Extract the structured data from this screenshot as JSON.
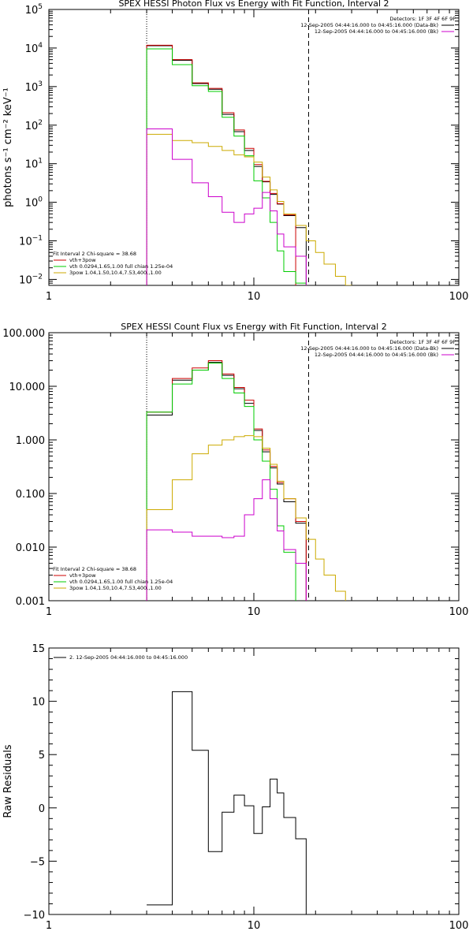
{
  "chart_data": [
    {
      "type": "line",
      "title": "SPEX HESSI Photon Flux vs Energy with Fit Function, Interval 2",
      "ylabel": "photons s⁻¹ cm⁻² keV⁻¹",
      "xlabel": "",
      "xscale": "log",
      "yscale": "log",
      "xlim": [
        1,
        100
      ],
      "ylim": [
        0.007,
        100000
      ],
      "x_tick_labels": [
        "1",
        "10",
        "100"
      ],
      "y_tick_labels": [
        {
          "base": "10",
          "exp": "−2",
          "value": 0.01
        },
        {
          "base": "10",
          "exp": "−1",
          "value": 0.1
        },
        {
          "base": "10",
          "exp": "0",
          "value": 1
        },
        {
          "base": "10",
          "exp": "1",
          "value": 10
        },
        {
          "base": "10",
          "exp": "2",
          "value": 100
        },
        {
          "base": "10",
          "exp": "3",
          "value": 1000
        },
        {
          "base": "10",
          "exp": "4",
          "value": 10000
        },
        {
          "base": "10",
          "exp": "5",
          "value": 100000
        }
      ],
      "vlines": [
        {
          "x": 3,
          "style": "dotted"
        },
        {
          "x": 18.5,
          "style": "dashed"
        }
      ],
      "legend_right": {
        "placement": "top-right",
        "entries": [
          {
            "text": "Detectors: 1F 3F 4F 6F 9F",
            "color": ""
          },
          {
            "text": "12-Sep-2005 04:44:16.000 to 04:45:16.000 (Data-Bk)",
            "color": "#000000"
          },
          {
            "text": "12-Sep-2005 04:44:16.000 to 04:45:16.000 (Bk)",
            "color": "#cc00cc"
          }
        ]
      },
      "legend_left": {
        "placement": "bottom-left",
        "header": "Fit Interval  2    Chi-square = 38.68",
        "entries": [
          {
            "text": "vth+3pow",
            "color": "#cc0000"
          },
          {
            "text": "vth 0.0294,1.65,1.00  full chian 1.25e-04",
            "color": "#00cc00"
          },
          {
            "text": "3pow 1.04,1.50,10.4,7.53,400.,1.00",
            "color": "#ccaa00"
          }
        ]
      },
      "edges": [
        3,
        4,
        5,
        6,
        7,
        8,
        9,
        10,
        11,
        12,
        13,
        14,
        16,
        18,
        20,
        22,
        25,
        28,
        30
      ],
      "series": [
        {
          "color": "#000000",
          "values": [
            11500,
            4800,
            1200,
            850,
            190,
            68,
            22,
            8.5,
            3.4,
            1.6,
            0.9,
            0.45,
            0.22,
            null,
            null,
            null,
            null,
            null
          ]
        },
        {
          "color": "#cc0000",
          "values": [
            11800,
            5000,
            1250,
            900,
            210,
            75,
            25,
            9.5,
            3.5,
            1.7,
            0.92,
            0.47,
            null,
            null,
            null,
            null,
            null,
            null
          ]
        },
        {
          "color": "#00cc00",
          "values": [
            9500,
            3700,
            1050,
            750,
            160,
            52,
            16,
            3.6,
            1.3,
            0.3,
            0.055,
            0.016,
            0.008,
            null,
            null,
            null,
            null,
            null
          ]
        },
        {
          "color": "#ccaa00",
          "values": [
            58,
            40,
            35,
            28,
            22,
            17,
            15,
            11,
            4.5,
            2.1,
            1.05,
            0.5,
            0.25,
            0.1,
            0.05,
            0.025,
            0.012,
            0.006
          ]
        },
        {
          "color": "#cc00cc",
          "values": [
            80,
            13,
            3.2,
            1.4,
            0.55,
            0.3,
            0.5,
            0.7,
            1.8,
            0.6,
            0.15,
            0.07,
            0.04,
            null,
            null,
            null,
            null,
            null
          ]
        }
      ]
    },
    {
      "type": "line",
      "title": "SPEX HESSI Count Flux vs Energy with Fit Function, Interval 2",
      "ylabel": "",
      "xlabel": "",
      "xscale": "log",
      "yscale": "log",
      "xlim": [
        1,
        100
      ],
      "ylim": [
        0.001,
        100
      ],
      "x_tick_labels": [
        "1",
        "10",
        "100"
      ],
      "y_tick_labels": [
        {
          "text": "0.001",
          "value": 0.001
        },
        {
          "text": "0.010",
          "value": 0.01
        },
        {
          "text": "0.100",
          "value": 0.1
        },
        {
          "text": "1.000",
          "value": 1
        },
        {
          "text": "10.000",
          "value": 10
        },
        {
          "text": "100.000",
          "value": 100
        }
      ],
      "vlines": [
        {
          "x": 3,
          "style": "dotted"
        },
        {
          "x": 18.5,
          "style": "dashed"
        }
      ],
      "legend_right": {
        "placement": "top-right",
        "entries": [
          {
            "text": "Detectors: 1F 3F 4F 6F 9F",
            "color": ""
          },
          {
            "text": "12-Sep-2005 04:44:16.000 to 04:45:16.000 (Data-Bk)",
            "color": "#000000"
          },
          {
            "text": "12-Sep-2005 04:44:16.000 to 04:45:16.000 (Bk)",
            "color": "#cc00cc"
          }
        ]
      },
      "legend_left": {
        "placement": "bottom-left",
        "header": "Fit Interval  2    Chi-square = 38.68",
        "entries": [
          {
            "text": "vth+3pow",
            "color": "#cc0000"
          },
          {
            "text": "vth 0.0294,1.65,1.00  full chian 1.25e-04",
            "color": "#00cc00"
          },
          {
            "text": "3pow 1.04,1.50,10.4,7.53,400.,1.00",
            "color": "#ccaa00"
          }
        ]
      },
      "edges": [
        3,
        4,
        5,
        6,
        7,
        8,
        9,
        10,
        11,
        12,
        13,
        14,
        16,
        18,
        20,
        22,
        25,
        28,
        30
      ],
      "series": [
        {
          "color": "#000000",
          "values": [
            2.9,
            13,
            20,
            28,
            16,
            9,
            4.8,
            1.5,
            0.6,
            0.3,
            0.15,
            0.07,
            0.028,
            null,
            null,
            null,
            null,
            null
          ]
        },
        {
          "color": "#cc0000",
          "values": [
            3.3,
            14,
            22,
            30,
            17,
            9.5,
            5.5,
            1.6,
            0.65,
            0.32,
            0.16,
            0.08,
            0.03,
            null,
            null,
            null,
            null,
            null
          ]
        },
        {
          "color": "#00cc00",
          "values": [
            3.3,
            11,
            20,
            27,
            14,
            7.5,
            4.2,
            1.0,
            0.4,
            0.12,
            0.025,
            0.008,
            null,
            null,
            null,
            null,
            null,
            null
          ]
        },
        {
          "color": "#ccaa00",
          "values": [
            0.05,
            0.18,
            0.55,
            0.8,
            1.0,
            1.15,
            1.2,
            1.15,
            0.7,
            0.35,
            0.17,
            0.08,
            0.035,
            0.014,
            0.006,
            0.003,
            0.0015,
            null
          ]
        },
        {
          "color": "#cc00cc",
          "values": [
            0.021,
            0.019,
            0.016,
            0.016,
            0.015,
            0.016,
            0.04,
            0.08,
            0.18,
            0.08,
            0.02,
            0.009,
            0.005,
            null,
            null,
            null,
            null,
            null
          ]
        }
      ]
    },
    {
      "type": "line",
      "title": "",
      "ylabel": "Raw Residuals",
      "xlabel": "",
      "xscale": "log",
      "yscale": "linear",
      "xlim": [
        1,
        100
      ],
      "ylim": [
        -10,
        15
      ],
      "x_tick_labels": [
        "1",
        "10",
        "100"
      ],
      "y_tick_labels": [
        {
          "text": "−10",
          "value": -10
        },
        {
          "text": "−5",
          "value": -5
        },
        {
          "text": "0",
          "value": 0
        },
        {
          "text": "5",
          "value": 5
        },
        {
          "text": "10",
          "value": 10
        },
        {
          "text": "15",
          "value": 15
        }
      ],
      "legend_left": {
        "placement": "top-left",
        "header": "",
        "entries": [
          {
            "text": "2. 12-Sep-2005 04:44:16.000 to 04:45:16.000",
            "color": "#000000"
          }
        ]
      },
      "edges": [
        3,
        4,
        5,
        6,
        7,
        8,
        9,
        10,
        11,
        12,
        13,
        14,
        16,
        18
      ],
      "series": [
        {
          "color": "#000000",
          "values": [
            -9.1,
            10.9,
            5.4,
            -4.1,
            -0.4,
            1.2,
            0.2,
            -2.4,
            0.1,
            2.7,
            1.4,
            -0.9,
            -2.9
          ]
        }
      ]
    }
  ]
}
